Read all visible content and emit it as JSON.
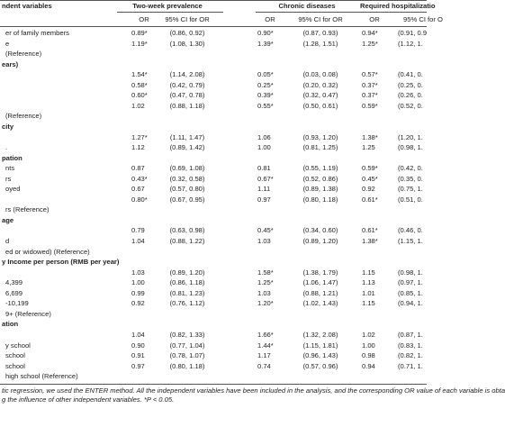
{
  "table": {
    "group_headers": [
      "ndent variables",
      "Two-week prevalence",
      "Chronic diseases",
      "Required hospitalizatio"
    ],
    "sub_headers": [
      "OR",
      "95% CI for OR",
      "OR",
      "95% CI for OR",
      "OR",
      "95% CI for O"
    ],
    "rows": [
      {
        "label": "er of family members",
        "cells": [
          "0.89*",
          "(0.86, 0.92)",
          "0.90*",
          "(0.87, 0.93)",
          "0.94*",
          "(0.91, 0.9"
        ]
      },
      {
        "label": "e",
        "cells": [
          "1.19*",
          "(1.08, 1.30)",
          "1.39*",
          "(1.28, 1.51)",
          "1.25*",
          "(1.12, 1."
        ]
      },
      {
        "label": "(Reference)"
      },
      {
        "section": "ears)"
      },
      {
        "cells": [
          "1.54*",
          "(1.14, 2.08)",
          "0.05*",
          "(0.03, 0.08)",
          "0.57*",
          "(0.41, 0."
        ]
      },
      {
        "cells": [
          "0.58*",
          "(0.42, 0.79)",
          "0.25*",
          "(0.20, 0.32)",
          "0.37*",
          "(0.25, 0."
        ]
      },
      {
        "cells": [
          "0.60*",
          "(0.47, 0.78)",
          "0.39*",
          "(0.32, 0.47)",
          "0.37*",
          "(0.26, 0."
        ]
      },
      {
        "cells": [
          "1.02",
          "(0.88, 1.18)",
          "0.55*",
          "(0.50, 0.61)",
          "0.59*",
          "(0.52, 0."
        ]
      },
      {
        "label": "(Reference)"
      },
      {
        "section": "city"
      },
      {
        "cells": [
          "1.27*",
          "(1.11, 1.47)",
          "1.06",
          "(0.93, 1.20)",
          "1.38*",
          "(1.20, 1."
        ]
      },
      {
        "label": ".",
        "cells": [
          "1.12",
          "(0.89, 1.42)",
          "1.00",
          "(0.81, 1.25)",
          "1.25",
          "(0.98, 1."
        ]
      },
      {
        "section": "pation"
      },
      {
        "label": "nts",
        "cells": [
          "0.87",
          "(0.69, 1.08)",
          "0.81",
          "(0.55, 1.19)",
          "0.59*",
          "(0.42, 0."
        ]
      },
      {
        "label": "rs",
        "cells": [
          "0.43*",
          "(0.32, 0.58)",
          "0.67*",
          "(0.52, 0.86)",
          "0.45*",
          "(0.35, 0."
        ]
      },
      {
        "label": "oyed",
        "cells": [
          "0.67",
          "(0.57, 0.80)",
          "1.11",
          "(0.89, 1.38)",
          "0.92",
          "(0.75, 1."
        ]
      },
      {
        "cells": [
          "0.80*",
          "(0.67, 0.95)",
          "0.97",
          "(0.80, 1.18)",
          "0.61*",
          "(0.51, 0."
        ]
      },
      {
        "label": "rs (Reference)"
      },
      {
        "section": "age"
      },
      {
        "cells": [
          "0.79",
          "(0.63, 0.98)",
          "0.45*",
          "(0.34, 0.60)",
          "0.61*",
          "(0.46, 0."
        ]
      },
      {
        "label": "d",
        "cells": [
          "1.04",
          "(0.88, 1.22)",
          "1.03",
          "(0.89, 1.20)",
          "1.38*",
          "(1.15, 1."
        ]
      },
      {
        "label": "ed or widowed) (Reference)"
      },
      {
        "section": "y Income per person (RMB per year)"
      },
      {
        "cells": [
          "1.03",
          "(0.89, 1.20)",
          "1.58*",
          "(1.38, 1.79)",
          "1.15",
          "(0.98, 1."
        ]
      },
      {
        "label": "4,399",
        "cells": [
          "1.00",
          "(0.86, 1.18)",
          "1.25*",
          "(1.06, 1.47)",
          "1.13",
          "(0.97, 1."
        ]
      },
      {
        "label": "6,699",
        "cells": [
          "0.99",
          "(0.81, 1.23)",
          "1.03",
          "(0.88, 1.21)",
          "1.01",
          "(0.85, 1."
        ]
      },
      {
        "label": "-10,199",
        "cells": [
          "0.92",
          "(0.76, 1.12)",
          "1.20*",
          "(1.02, 1.43)",
          "1.15",
          "(0.94, 1."
        ]
      },
      {
        "label": "9+ (Reference)"
      },
      {
        "section": "ation"
      },
      {
        "cells": [
          "1.04",
          "(0.82, 1.33)",
          "1.66*",
          "(1.32, 2.08)",
          "1.02",
          "(0.87, 1."
        ]
      },
      {
        "label": "y school",
        "cells": [
          "0.90",
          "(0.77, 1.04)",
          "1.44*",
          "(1.15, 1.81)",
          "1.00",
          "(0.83, 1."
        ]
      },
      {
        "label": "school",
        "cells": [
          "0.91",
          "(0.78, 1.07)",
          "1.17",
          "(0.96, 1.43)",
          "0.98",
          "(0.82, 1."
        ]
      },
      {
        "label": "school",
        "cells": [
          "0.97",
          "(0.80, 1.18)",
          "0.74",
          "(0.57, 0.96)",
          "0.94",
          "(0.71, 1."
        ]
      },
      {
        "label": "high school (Reference)"
      }
    ],
    "footnote": [
      "tic regression, we used the ENTER method. All the independent variables have been included in the analysis, and the corresponding OR value of each variable is obta",
      "g the influence of other independent variables. *P < 0.05."
    ]
  }
}
